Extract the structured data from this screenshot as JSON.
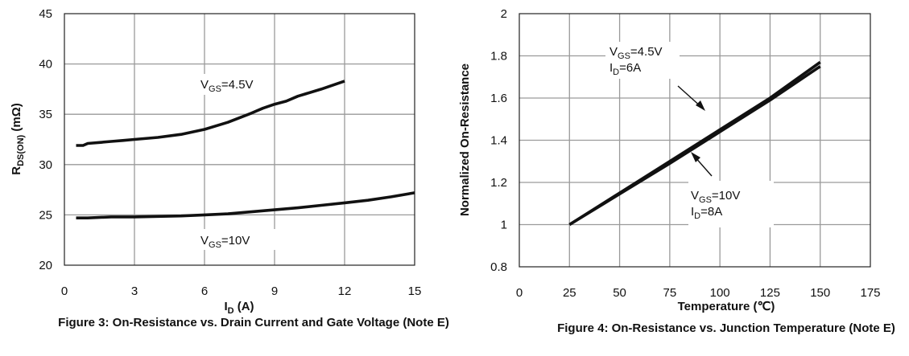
{
  "chart_data": [
    {
      "type": "line",
      "caption": "Figure 3: On-Resistance vs. Drain Current and Gate Voltage (Note E)",
      "xlabel_main": "I",
      "xlabel_sub": "D",
      "xlabel_unit": " (A)",
      "ylabel_main": "R",
      "ylabel_sub": "DS(ON)",
      "ylabel_unit": " (mΩ)",
      "xlim": [
        0,
        15
      ],
      "ylim": [
        20,
        45
      ],
      "xticks": [
        0,
        3,
        6,
        9,
        12,
        15
      ],
      "yticks": [
        20,
        25,
        30,
        35,
        40,
        45
      ],
      "grid": true,
      "series": [
        {
          "label_main": "V",
          "label_sub": "GS",
          "label_rest": "=4.5V",
          "x": [
            0.5,
            0.8,
            1.0,
            1.5,
            2.0,
            2.5,
            3.0,
            4.0,
            5.0,
            6.0,
            7.0,
            8.0,
            8.5,
            9.0,
            9.5,
            10.0,
            11.0,
            12.0
          ],
          "y": [
            31.9,
            31.9,
            32.1,
            32.2,
            32.3,
            32.4,
            32.5,
            32.7,
            33.0,
            33.5,
            34.2,
            35.1,
            35.6,
            36.0,
            36.3,
            36.8,
            37.5,
            38.3
          ]
        },
        {
          "label_main": "V",
          "label_sub": "GS",
          "label_rest": "=10V",
          "x": [
            0.5,
            1.0,
            2.0,
            3.0,
            4.0,
            5.0,
            6.0,
            7.0,
            8.0,
            9.0,
            10.0,
            11.0,
            12.0,
            13.0,
            14.0,
            15.0
          ],
          "y": [
            24.7,
            24.7,
            24.8,
            24.8,
            24.85,
            24.9,
            25.0,
            25.1,
            25.3,
            25.5,
            25.7,
            25.95,
            26.2,
            26.45,
            26.8,
            27.2
          ]
        }
      ]
    },
    {
      "type": "line",
      "caption": "Figure 4: On-Resistance vs. Junction Temperature (Note E)",
      "xlabel": "Temperature (℃)",
      "ylabel": "Normalized On-Resistance",
      "xlim": [
        0,
        175
      ],
      "ylim": [
        0.8,
        2.0
      ],
      "xticks": [
        0,
        25,
        50,
        75,
        100,
        125,
        150,
        175
      ],
      "yticks": [
        "0.8",
        "1",
        "1.2",
        "1.4",
        "1.6",
        "1.8",
        "2"
      ],
      "grid": true,
      "series": [
        {
          "label_main": "V",
          "label_sub": "GS",
          "label_rest": "=4.5V",
          "label2_main": "I",
          "label2_sub": "D",
          "label2_rest": "=6A",
          "x": [
            25,
            50,
            75,
            100,
            125,
            150
          ],
          "y": [
            1.0,
            1.15,
            1.3,
            1.45,
            1.6,
            1.77
          ]
        },
        {
          "label_main": "V",
          "label_sub": "GS",
          "label_rest": "=10V",
          "label2_main": "I",
          "label2_sub": "D",
          "label2_rest": "=8A",
          "x": [
            25,
            50,
            75,
            100,
            125,
            150
          ],
          "y": [
            1.0,
            1.145,
            1.29,
            1.44,
            1.59,
            1.75
          ]
        }
      ]
    }
  ]
}
